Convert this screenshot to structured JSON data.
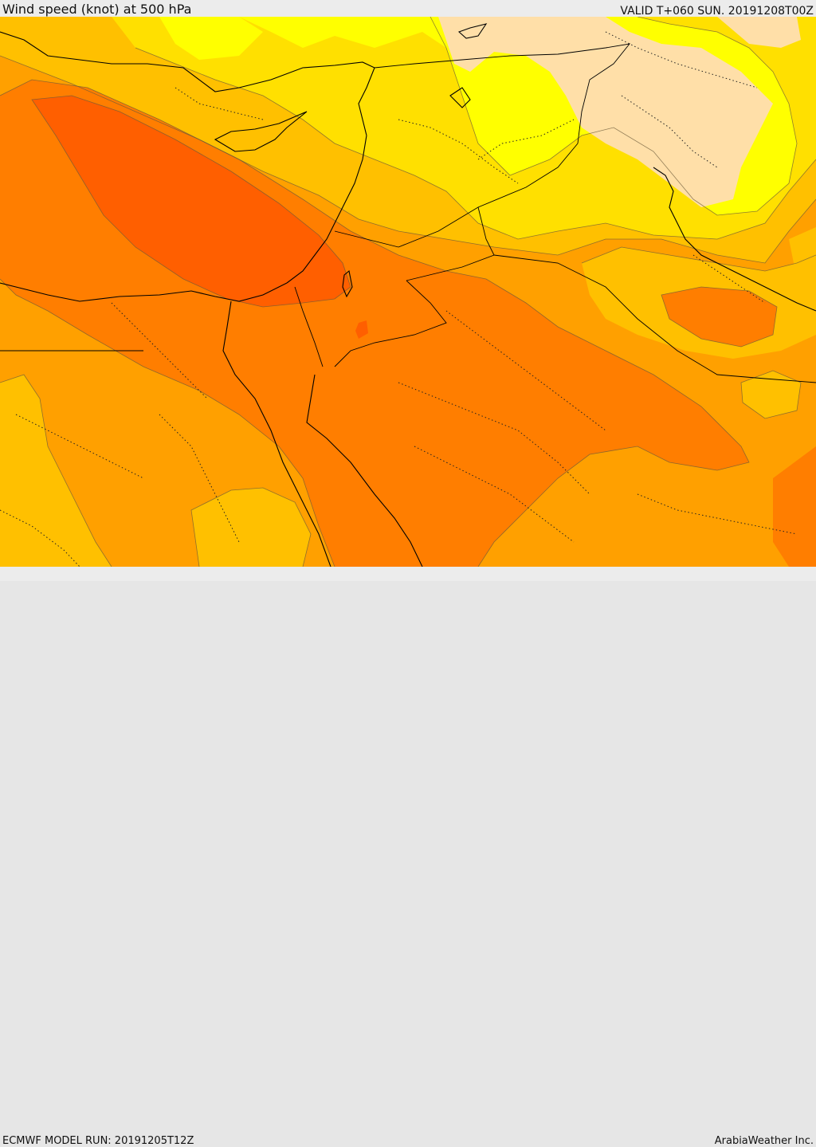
{
  "header": {
    "title": "Wind speed (knot) at 500 hPa",
    "valid_time": "VALID T+060 SUN. 20191208T00Z"
  },
  "footer": {
    "model_run": "ECMWF MODEL RUN: 20191205T12Z",
    "credit": "ArabiaWeather Inc."
  },
  "map": {
    "colors": {
      "background": "#ffa500",
      "lightest": "#ffdfa8",
      "yellow": "#ffff00",
      "gold": "#ffe000",
      "amber": "#ffc000",
      "orange": "#ffa000",
      "dark_orange": "#ff7e00",
      "red_orange": "#ff5f00"
    }
  }
}
